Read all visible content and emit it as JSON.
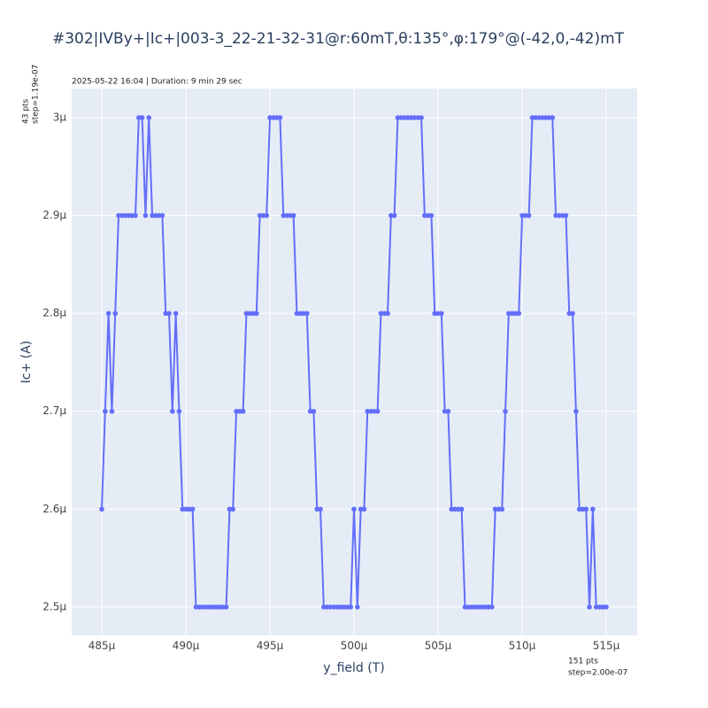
{
  "chart_data": {
    "type": "line",
    "title": "#302|IVBy+|Ic+|003-3_22-21-32-31@r:60mT,θ:135°,φ:179°@(-42,0,-42)mT",
    "annotations": {
      "top": "2025-05-22 16:04 | Duration: 9 min 29 sec",
      "y_points": [
        "43 pts",
        "step=1.19e-07"
      ],
      "x_points": [
        "151 pts",
        "step=2.00e-07"
      ]
    },
    "x_label": "y_field (T)",
    "y_label": "Ic+ (A)",
    "x": [
      0.000485,
      0.0004852,
      0.0004854,
      0.0004856,
      0.0004858,
      0.000486,
      0.0004862,
      0.0004864,
      0.0004866,
      0.0004868,
      0.000487,
      0.0004872,
      0.0004874,
      0.0004876,
      0.0004878,
      0.000488,
      0.0004882,
      0.0004884,
      0.0004886,
      0.0004888,
      0.000489,
      0.0004892,
      0.0004894,
      0.0004896,
      0.0004898,
      0.00049,
      0.0004902,
      0.0004904,
      0.0004906,
      0.0004908,
      0.000491,
      0.0004912,
      0.0004914,
      0.0004916,
      0.0004918,
      0.000492,
      0.0004922,
      0.0004924,
      0.0004926,
      0.0004928,
      0.000493,
      0.0004932,
      0.0004934,
      0.0004936,
      0.0004938,
      0.000494,
      0.0004942,
      0.0004944,
      0.0004946,
      0.0004948,
      0.000495,
      0.0004952,
      0.0004954,
      0.0004956,
      0.0004958,
      0.000496,
      0.0004962,
      0.0004964,
      0.0004966,
      0.0004968,
      0.000497,
      0.0004972,
      0.0004974,
      0.0004976,
      0.0004978,
      0.000498,
      0.0004982,
      0.0004984,
      0.0004986,
      0.0004988,
      0.000499,
      0.0004992,
      0.0004994,
      0.0004996,
      0.0004998,
      0.0005,
      0.0005002,
      0.0005004,
      0.0005006,
      0.0005008,
      0.000501,
      0.0005012,
      0.0005014,
      0.0005016,
      0.0005018,
      0.000502,
      0.0005022,
      0.0005024,
      0.0005026,
      0.0005028,
      0.000503,
      0.0005032,
      0.0005034,
      0.0005036,
      0.0005038,
      0.000504,
      0.0005042,
      0.0005044,
      0.0005046,
      0.0005048,
      0.000505,
      0.0005052,
      0.0005054,
      0.0005056,
      0.0005058,
      0.000506,
      0.0005062,
      0.0005064,
      0.0005066,
      0.0005068,
      0.000507,
      0.0005072,
      0.0005074,
      0.0005076,
      0.0005078,
      0.000508,
      0.0005082,
      0.0005084,
      0.0005086,
      0.0005088,
      0.000509,
      0.0005092,
      0.0005094,
      0.0005096,
      0.0005098,
      0.00051,
      0.0005102,
      0.0005104,
      0.0005106,
      0.0005108,
      0.000511,
      0.0005112,
      0.0005114,
      0.0005116,
      0.0005118,
      0.000512,
      0.0005122,
      0.0005124,
      0.0005126,
      0.0005128,
      0.000513,
      0.0005132,
      0.0005134,
      0.0005136,
      0.0005138,
      0.000514,
      0.0005142,
      0.0005144,
      0.0005146,
      0.0005148,
      0.000515
    ],
    "series": [
      {
        "color": "#636efa",
        "values": [
          2.6e-06,
          2.7e-06,
          2.8e-06,
          2.7e-06,
          2.8e-06,
          2.9e-06,
          2.9e-06,
          2.9e-06,
          2.9e-06,
          2.9e-06,
          2.9e-06,
          3e-06,
          3e-06,
          2.9e-06,
          3e-06,
          2.9e-06,
          2.9e-06,
          2.9e-06,
          2.9e-06,
          2.8e-06,
          2.8e-06,
          2.7e-06,
          2.8e-06,
          2.7e-06,
          2.6e-06,
          2.6e-06,
          2.6e-06,
          2.6e-06,
          2.5e-06,
          2.5e-06,
          2.5e-06,
          2.5e-06,
          2.5e-06,
          2.5e-06,
          2.5e-06,
          2.5e-06,
          2.5e-06,
          2.5e-06,
          2.6e-06,
          2.6e-06,
          2.7e-06,
          2.7e-06,
          2.7e-06,
          2.8e-06,
          2.8e-06,
          2.8e-06,
          2.8e-06,
          2.9e-06,
          2.9e-06,
          2.9e-06,
          3e-06,
          3e-06,
          3e-06,
          3e-06,
          2.9e-06,
          2.9e-06,
          2.9e-06,
          2.9e-06,
          2.8e-06,
          2.8e-06,
          2.8e-06,
          2.8e-06,
          2.7e-06,
          2.7e-06,
          2.6e-06,
          2.6e-06,
          2.5e-06,
          2.5e-06,
          2.5e-06,
          2.5e-06,
          2.5e-06,
          2.5e-06,
          2.5e-06,
          2.5e-06,
          2.5e-06,
          2.6e-06,
          2.5e-06,
          2.6e-06,
          2.6e-06,
          2.7e-06,
          2.7e-06,
          2.7e-06,
          2.7e-06,
          2.8e-06,
          2.8e-06,
          2.8e-06,
          2.9e-06,
          2.9e-06,
          3e-06,
          3e-06,
          3e-06,
          3e-06,
          3e-06,
          3e-06,
          3e-06,
          3e-06,
          2.9e-06,
          2.9e-06,
          2.9e-06,
          2.8e-06,
          2.8e-06,
          2.8e-06,
          2.7e-06,
          2.7e-06,
          2.6e-06,
          2.6e-06,
          2.6e-06,
          2.6e-06,
          2.5e-06,
          2.5e-06,
          2.5e-06,
          2.5e-06,
          2.5e-06,
          2.5e-06,
          2.5e-06,
          2.5e-06,
          2.5e-06,
          2.6e-06,
          2.6e-06,
          2.6e-06,
          2.7e-06,
          2.8e-06,
          2.8e-06,
          2.8e-06,
          2.8e-06,
          2.9e-06,
          2.9e-06,
          2.9e-06,
          3e-06,
          3e-06,
          3e-06,
          3e-06,
          3e-06,
          3e-06,
          3e-06,
          2.9e-06,
          2.9e-06,
          2.9e-06,
          2.9e-06,
          2.8e-06,
          2.8e-06,
          2.7e-06,
          2.6e-06,
          2.6e-06,
          2.6e-06,
          2.5e-06,
          2.6e-06,
          2.5e-06,
          2.5e-06,
          2.5e-06,
          2.5e-06
        ]
      }
    ],
    "xlim": [
      0.00048321,
      0.00051684
    ],
    "ylim": [
      2.471e-06,
      3.0298e-06
    ],
    "xticks": [
      {
        "value": 0.000485,
        "label": "485µ"
      },
      {
        "value": 0.00049,
        "label": "490µ"
      },
      {
        "value": 0.000495,
        "label": "495µ"
      },
      {
        "value": 0.0005,
        "label": "500µ"
      },
      {
        "value": 0.000505,
        "label": "505µ"
      },
      {
        "value": 0.00051,
        "label": "510µ"
      },
      {
        "value": 0.000515,
        "label": "515µ"
      }
    ],
    "yticks": [
      {
        "value": 2.5e-06,
        "label": "2.5µ"
      },
      {
        "value": 2.6e-06,
        "label": "2.6µ"
      },
      {
        "value": 2.7e-06,
        "label": "2.7µ"
      },
      {
        "value": 2.8e-06,
        "label": "2.8µ"
      },
      {
        "value": 2.9e-06,
        "label": "2.9µ"
      },
      {
        "value": 3e-06,
        "label": "3µ"
      }
    ],
    "grid": true
  }
}
